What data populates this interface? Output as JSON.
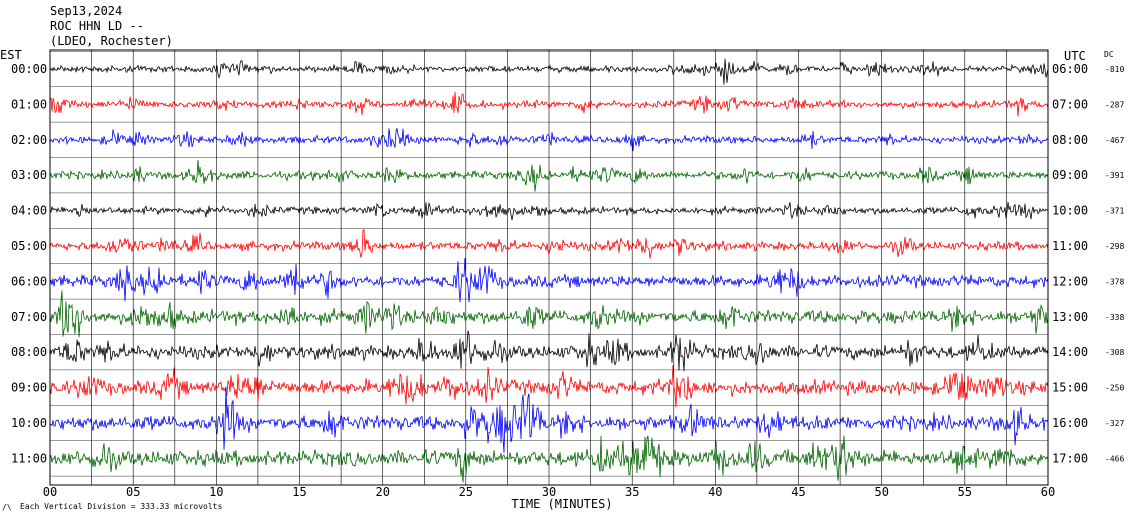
{
  "header": {
    "date": "Sep13,2024",
    "station": "ROC HHN LD --",
    "network": "(LDEO, Rochester)"
  },
  "chart_data": {
    "type": "line",
    "title": "",
    "left_axis_label": "EST",
    "right_axis_label": "UTC",
    "dc_label": "DC",
    "xlabel": "TIME (MINUTES)",
    "xlim": [
      0,
      60
    ],
    "x_ticks": [
      "00",
      "05",
      "10",
      "15",
      "20",
      "25",
      "30",
      "35",
      "40",
      "45",
      "50",
      "55",
      "60"
    ],
    "footnote": "Each Vertical Division = 333.33 microvolts",
    "corner_mark": "/\\",
    "grid": true,
    "series": [
      {
        "est": "00:00",
        "utc": "06:00",
        "dc": "-810",
        "color": "#000000",
        "amp": 9
      },
      {
        "est": "01:00",
        "utc": "07:00",
        "dc": "-287",
        "color": "#ff0000",
        "amp": 10
      },
      {
        "est": "02:00",
        "utc": "08:00",
        "dc": "-467",
        "color": "#0000ff",
        "amp": 10
      },
      {
        "est": "03:00",
        "utc": "09:00",
        "dc": "-391",
        "color": "#006400",
        "amp": 11
      },
      {
        "est": "04:00",
        "utc": "10:00",
        "dc": "-371",
        "color": "#000000",
        "amp": 10
      },
      {
        "est": "05:00",
        "utc": "11:00",
        "dc": "-298",
        "color": "#ff0000",
        "amp": 12
      },
      {
        "est": "06:00",
        "utc": "12:00",
        "dc": "-378",
        "color": "#0000ff",
        "amp": 17
      },
      {
        "est": "07:00",
        "utc": "13:00",
        "dc": "-338",
        "color": "#006400",
        "amp": 19
      },
      {
        "est": "08:00",
        "utc": "14:00",
        "dc": "-308",
        "color": "#000000",
        "amp": 19
      },
      {
        "est": "09:00",
        "utc": "15:00",
        "dc": "-250",
        "color": "#ff0000",
        "amp": 20
      },
      {
        "est": "10:00",
        "utc": "16:00",
        "dc": "-327",
        "color": "#0000ff",
        "amp": 21
      },
      {
        "est": "11:00",
        "utc": "17:00",
        "dc": "-466",
        "color": "#006400",
        "amp": 22
      }
    ]
  }
}
